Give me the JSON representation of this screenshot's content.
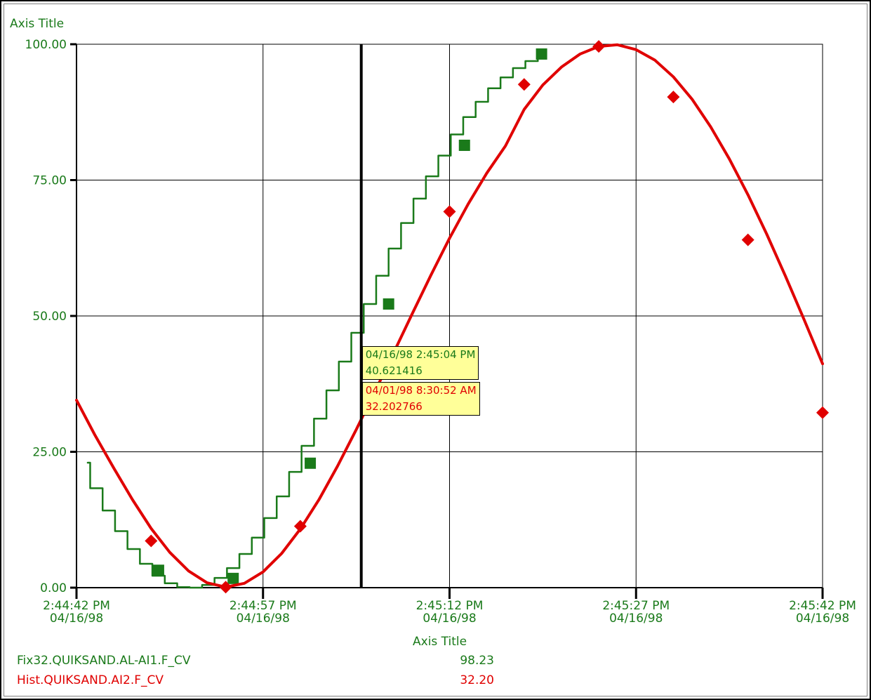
{
  "chart_data": {
    "type": "line",
    "title": "",
    "ylabel": "Axis Title",
    "xlabel": "Axis Title",
    "ylim": [
      0,
      100
    ],
    "yticks": [
      "0.00",
      "25.00",
      "50.00",
      "75.00",
      "100.00"
    ],
    "xticks": [
      {
        "time": "2:44:42 PM",
        "date": "04/16/98"
      },
      {
        "time": "2:44:57 PM",
        "date": "04/16/98"
      },
      {
        "time": "2:45:12 PM",
        "date": "04/16/98"
      },
      {
        "time": "2:45:27 PM",
        "date": "04/16/98"
      },
      {
        "time": "2:45:42 PM",
        "date": "04/16/98"
      }
    ],
    "xlim_seconds_after_start": [
      0,
      60
    ],
    "grid": true,
    "series": [
      {
        "name": "Fix32.QUIKSAND.AL-AI1.F_CV",
        "color": "#1a7a1a",
        "style": "step",
        "marker": "square",
        "x": [
          0.9,
          1.1,
          2.1,
          3.1,
          4.1,
          5.1,
          6.1,
          7.1,
          8.1,
          9.1,
          10.1,
          11.1,
          12.1,
          13.1,
          14.1,
          15.1,
          16.1,
          17.1,
          18.1,
          19.1,
          20.1,
          21.1,
          22.1,
          23.1,
          24.1,
          25.1,
          26.1,
          27.1,
          28.1,
          29.1,
          30.1,
          31.1,
          32.1,
          33.1,
          34.1,
          35.1,
          36.1,
          37.1,
          37.6
        ],
        "y": [
          23.0,
          18.3,
          14.2,
          10.4,
          7.1,
          4.4,
          2.2,
          0.8,
          0.1,
          0.0,
          0.5,
          1.8,
          3.6,
          6.2,
          9.2,
          12.8,
          16.8,
          21.3,
          26.1,
          31.1,
          36.3,
          41.6,
          46.9,
          52.2,
          57.4,
          62.4,
          67.1,
          71.6,
          75.7,
          79.5,
          83.4,
          86.6,
          89.4,
          91.9,
          93.9,
          95.6,
          96.9,
          98.0,
          98.2
        ],
        "marker_x": [
          6.6,
          12.6,
          18.8,
          25.1,
          31.2,
          37.4
        ],
        "marker_y": [
          3.2,
          1.7,
          22.9,
          52.2,
          81.4,
          98.2
        ]
      },
      {
        "name": "Hist.QUIKSAND.AI2.F_CV",
        "color": "#e00000",
        "style": "line",
        "marker": "diamond",
        "x": [
          0,
          1.5,
          3,
          4.5,
          6,
          7.5,
          9,
          10.5,
          12,
          13.5,
          15,
          16.5,
          18,
          19.5,
          21,
          22.5,
          24,
          25.5,
          27,
          28.5,
          30,
          31.5,
          33,
          34.5,
          36,
          37.5,
          39,
          40.5,
          42,
          43.5,
          45,
          46.5,
          48,
          49.5,
          51,
          52.5,
          54,
          55.5,
          57,
          58.5,
          60
        ],
        "y": [
          34.5,
          28.0,
          22.0,
          16.2,
          10.9,
          6.5,
          3.1,
          0.9,
          0.1,
          0.8,
          2.9,
          6.3,
          10.8,
          16.2,
          22.4,
          29.1,
          36.1,
          43.2,
          50.4,
          57.5,
          64.3,
          70.6,
          76.3,
          81.3,
          88.0,
          92.5,
          95.8,
          98.2,
          99.6,
          99.9,
          99.0,
          97.1,
          94.0,
          89.9,
          84.8,
          78.9,
          72.3,
          65.1,
          57.4,
          49.4,
          41.2
        ],
        "marker_x": [
          6.0,
          12.0,
          18.0,
          30.0,
          36.0,
          42.0,
          48.0,
          54.0,
          60.0
        ],
        "marker_y": [
          8.6,
          0.1,
          11.3,
          69.2,
          92.6,
          99.6,
          90.3,
          64.0,
          32.2
        ]
      }
    ],
    "cursor": {
      "x": 22.9,
      "tooltips": [
        {
          "line1": "04/16/98 2:45:04 PM",
          "line2": "40.621416",
          "color": "#1a7a1a"
        },
        {
          "line1": "04/01/98 8:30:52 AM",
          "line2": "32.202766",
          "color": "#e00000"
        }
      ]
    },
    "legend": [
      {
        "name": "Fix32.QUIKSAND.AL-AI1.F_CV",
        "value": "98.23",
        "color": "#1a7a1a"
      },
      {
        "name": "Hist.QUIKSAND.AI2.F_CV",
        "value": "32.20",
        "color": "#e00000"
      }
    ]
  },
  "colors": {
    "axis_text": "#1a7a1a",
    "grid": "#000000",
    "cursor": "#000000",
    "tooltip_bg": "#ffff99"
  }
}
